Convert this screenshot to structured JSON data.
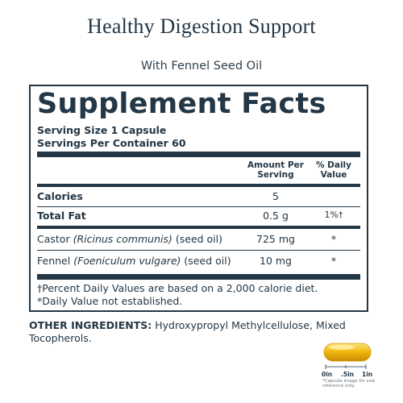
{
  "header": {
    "title": "Healthy Digestion Support",
    "subtitle": "With Fennel Seed Oil"
  },
  "facts": {
    "title": "Supplement Facts",
    "serving_size": "Serving Size 1 Capsule",
    "servings_per_container": "Servings Per Container 60",
    "columns": {
      "amount_line1": "Amount Per",
      "amount_line2": "Serving",
      "dv_line1": "% Daily",
      "dv_line2": "Value"
    },
    "rows": [
      {
        "name": "Calories",
        "amount": "5",
        "dv": ""
      },
      {
        "name": "Total Fat",
        "amount": "0.5 g",
        "dv": "1%†"
      },
      {
        "name": "Castor",
        "latin": "(Ricinus communis)",
        "part": "(seed oil)",
        "amount": "725 mg",
        "dv": "*"
      },
      {
        "name": "Fennel",
        "latin": "(Foeniculum vulgare)",
        "part": "(seed oil)",
        "amount": "10 mg",
        "dv": "*"
      }
    ],
    "footnotes": [
      "†Percent Daily Values are based on a 2,000 calorie diet.",
      "*Daily Value not established."
    ]
  },
  "other_ingredients": {
    "label": "OTHER INGREDIENTS:",
    "text": " Hydroxypropyl Methylcellulose, Mixed Tocopherols."
  },
  "capsule": {
    "scale_labels": [
      "0in",
      ".5in",
      "1in"
    ],
    "caption": "*Capsule image for size reference only.",
    "color": "#f2b90f"
  }
}
